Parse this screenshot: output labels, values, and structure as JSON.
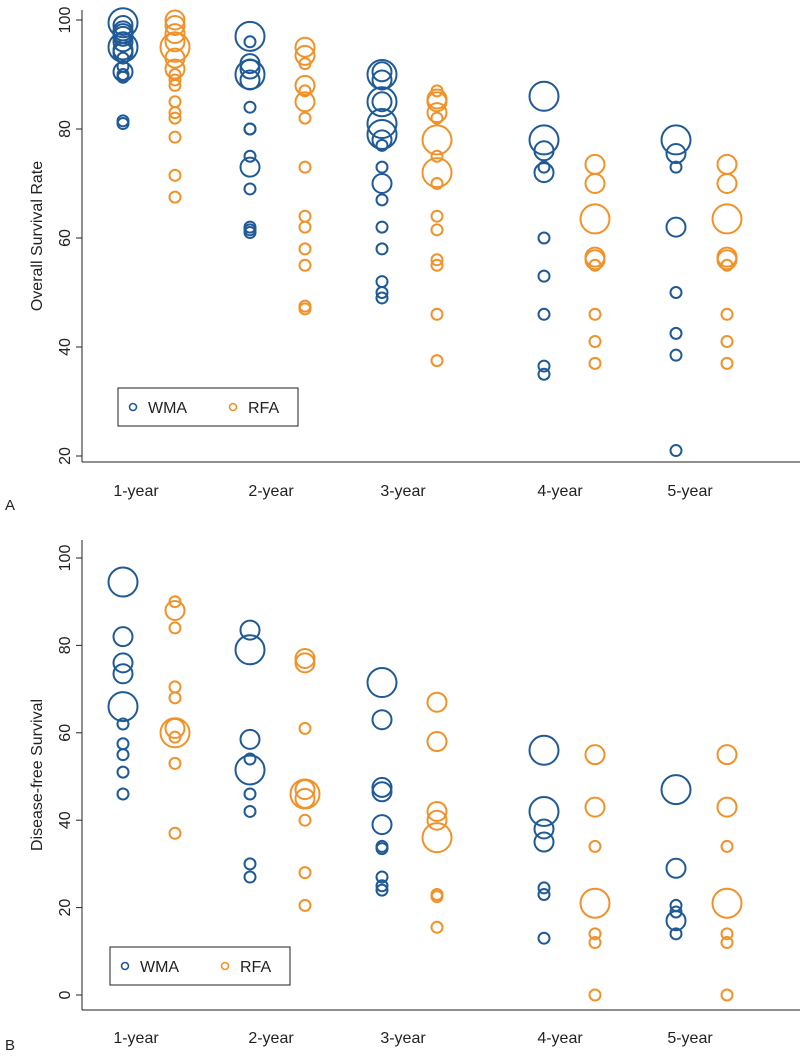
{
  "panels": [
    "A",
    "B"
  ],
  "colors": {
    "wma": "#1f5a96",
    "rfa": "#f0922a",
    "axis": "#222222"
  },
  "chart_data": [
    {
      "type": "scatter",
      "subtype": "bubble",
      "panel_label": "A",
      "title": "",
      "xlabel": "",
      "ylabel": "Overall Survival Rate",
      "categories": [
        "1-year",
        "2-year",
        "3-year",
        "4-year",
        "5-year"
      ],
      "ylim": [
        20,
        100
      ],
      "yticks": [
        20,
        40,
        60,
        80,
        100
      ],
      "legend": {
        "position": "bottom-left",
        "entries": [
          "WMA",
          "RFA"
        ]
      },
      "series": [
        {
          "name": "WMA",
          "color": "#1f5a96",
          "points": {
            "1-year": [
              [
                99.5,
                3
              ],
              [
                99,
                2
              ],
              [
                98,
                2
              ],
              [
                97.5,
                2
              ],
              [
                97,
                2
              ],
              [
                96,
                2
              ],
              [
                95,
                3
              ],
              [
                94.5,
                2
              ],
              [
                94,
                2
              ],
              [
                93,
                1
              ],
              [
                91.5,
                1
              ],
              [
                90.5,
                2
              ],
              [
                90,
                1
              ],
              [
                89.5,
                1
              ],
              [
                81.5,
                1
              ],
              [
                81,
                1
              ]
            ],
            "2-year": [
              [
                97,
                3
              ],
              [
                96,
                1
              ],
              [
                92,
                2
              ],
              [
                91,
                2
              ],
              [
                90,
                3
              ],
              [
                89,
                2
              ],
              [
                84,
                1
              ],
              [
                80,
                1
              ],
              [
                80,
                1
              ],
              [
                75,
                1
              ],
              [
                73,
                2
              ],
              [
                69,
                1
              ],
              [
                62,
                1
              ],
              [
                61.5,
                1
              ],
              [
                61,
                1
              ]
            ],
            "3-year": [
              [
                90.5,
                2
              ],
              [
                90,
                3
              ],
              [
                89,
                2
              ],
              [
                85,
                3
              ],
              [
                85,
                2
              ],
              [
                81,
                3
              ],
              [
                79,
                3
              ],
              [
                78,
                2
              ],
              [
                77,
                1
              ],
              [
                73,
                1
              ],
              [
                70,
                2
              ],
              [
                67,
                1
              ],
              [
                62,
                1
              ],
              [
                58,
                1
              ],
              [
                52,
                1
              ],
              [
                50,
                1
              ],
              [
                49,
                1
              ]
            ],
            "4-year": [
              [
                86,
                3
              ],
              [
                78,
                3
              ],
              [
                76,
                2
              ],
              [
                73,
                1
              ],
              [
                72,
                2
              ],
              [
                60,
                1
              ],
              [
                53,
                1
              ],
              [
                46,
                1
              ],
              [
                36.5,
                1
              ],
              [
                35,
                1
              ]
            ],
            "5-year": [
              [
                78,
                3
              ],
              [
                75.5,
                2
              ],
              [
                73,
                1
              ],
              [
                62,
                2
              ],
              [
                50,
                1
              ],
              [
                42.5,
                1
              ],
              [
                38.5,
                1
              ],
              [
                21,
                1
              ]
            ]
          }
        },
        {
          "name": "RFA",
          "color": "#f0922a",
          "points": {
            "1-year": [
              [
                100,
                2
              ],
              [
                99,
                2
              ],
              [
                97.5,
                2
              ],
              [
                96,
                2
              ],
              [
                95,
                3
              ],
              [
                93,
                2
              ],
              [
                91,
                2
              ],
              [
                90,
                1
              ],
              [
                89,
                1
              ],
              [
                88,
                1
              ],
              [
                85,
                1
              ],
              [
                83,
                1
              ],
              [
                82,
                1
              ],
              [
                78.5,
                1
              ],
              [
                71.5,
                1
              ],
              [
                67.5,
                1
              ]
            ],
            "2-year": [
              [
                95,
                2
              ],
              [
                93.5,
                2
              ],
              [
                92,
                1
              ],
              [
                88,
                2
              ],
              [
                87,
                1
              ],
              [
                85,
                2
              ],
              [
                82,
                1
              ],
              [
                73,
                1
              ],
              [
                64,
                1
              ],
              [
                62,
                1
              ],
              [
                58,
                1
              ],
              [
                55,
                1
              ],
              [
                47.5,
                1
              ],
              [
                47,
                1
              ]
            ],
            "3-year": [
              [
                87,
                1
              ],
              [
                85.5,
                2
              ],
              [
                85,
                2
              ],
              [
                83,
                2
              ],
              [
                82,
                1
              ],
              [
                78,
                3
              ],
              [
                75,
                1
              ],
              [
                72,
                3
              ],
              [
                70,
                1
              ],
              [
                64,
                1
              ],
              [
                61.5,
                1
              ],
              [
                56,
                1
              ],
              [
                55,
                1
              ],
              [
                46,
                1
              ],
              [
                37.5,
                1
              ]
            ],
            "4-year": [
              [
                73.5,
                2
              ],
              [
                70,
                2
              ],
              [
                63.5,
                3
              ],
              [
                56.5,
                2
              ],
              [
                56,
                2
              ],
              [
                55,
                1
              ],
              [
                46,
                1
              ],
              [
                41,
                1
              ],
              [
                37,
                1
              ]
            ],
            "5-year": [
              [
                73.5,
                2
              ],
              [
                70,
                2
              ],
              [
                63.5,
                3
              ],
              [
                56.5,
                2
              ],
              [
                56,
                2
              ],
              [
                55,
                1
              ],
              [
                46,
                1
              ],
              [
                41,
                1
              ],
              [
                37,
                1
              ]
            ]
          }
        }
      ]
    },
    {
      "type": "scatter",
      "subtype": "bubble",
      "panel_label": "B",
      "title": "",
      "xlabel": "",
      "ylabel": "Disease-free Survival",
      "categories": [
        "1-year",
        "2-year",
        "3-year",
        "4-year",
        "5-year"
      ],
      "ylim": [
        0,
        100
      ],
      "yticks": [
        0,
        20,
        40,
        60,
        80,
        100
      ],
      "legend": {
        "position": "bottom-left",
        "entries": [
          "WMA",
          "RFA"
        ]
      },
      "series": [
        {
          "name": "WMA",
          "color": "#1f5a96",
          "points": {
            "1-year": [
              [
                94.5,
                3
              ],
              [
                82,
                2
              ],
              [
                76,
                2
              ],
              [
                73.5,
                2
              ],
              [
                66,
                3
              ],
              [
                62,
                1
              ],
              [
                57.5,
                1
              ],
              [
                55,
                1
              ],
              [
                51,
                1
              ],
              [
                46,
                1
              ]
            ],
            "2-year": [
              [
                83.5,
                2
              ],
              [
                79,
                3
              ],
              [
                58.5,
                2
              ],
              [
                54,
                1
              ],
              [
                51.5,
                3
              ],
              [
                46,
                1
              ],
              [
                42,
                1
              ],
              [
                30,
                1
              ],
              [
                27,
                1
              ]
            ],
            "3-year": [
              [
                71.5,
                3
              ],
              [
                63,
                2
              ],
              [
                47.5,
                2
              ],
              [
                46.5,
                2
              ],
              [
                39,
                2
              ],
              [
                34,
                1
              ],
              [
                33.5,
                1
              ],
              [
                27,
                1
              ],
              [
                25,
                1
              ],
              [
                24,
                1
              ]
            ],
            "4-year": [
              [
                56,
                3
              ],
              [
                42,
                3
              ],
              [
                38,
                2
              ],
              [
                35,
                2
              ],
              [
                24.5,
                1
              ],
              [
                23,
                1
              ],
              [
                13,
                1
              ]
            ],
            "5-year": [
              [
                47,
                3
              ],
              [
                29,
                2
              ],
              [
                20.5,
                1
              ],
              [
                19,
                1
              ],
              [
                17,
                2
              ],
              [
                14,
                1
              ]
            ]
          }
        },
        {
          "name": "RFA",
          "color": "#f0922a",
          "points": {
            "1-year": [
              [
                90,
                1
              ],
              [
                88,
                2
              ],
              [
                84,
                1
              ],
              [
                70.5,
                1
              ],
              [
                68,
                1
              ],
              [
                61,
                2
              ],
              [
                60,
                3
              ],
              [
                59,
                1
              ],
              [
                53,
                1
              ],
              [
                37,
                1
              ]
            ],
            "2-year": [
              [
                77,
                2
              ],
              [
                76,
                2
              ],
              [
                61,
                1
              ],
              [
                47,
                2
              ],
              [
                46,
                3
              ],
              [
                45,
                2
              ],
              [
                40,
                1
              ],
              [
                28,
                1
              ],
              [
                20.5,
                1
              ]
            ],
            "3-year": [
              [
                67,
                2
              ],
              [
                58,
                2
              ],
              [
                42,
                2
              ],
              [
                40,
                2
              ],
              [
                36,
                3
              ],
              [
                23,
                1
              ],
              [
                22.5,
                1
              ],
              [
                15.5,
                1
              ]
            ],
            "4-year": [
              [
                55,
                2
              ],
              [
                43,
                2
              ],
              [
                34,
                1
              ],
              [
                21,
                3
              ],
              [
                14,
                1
              ],
              [
                12,
                1
              ],
              [
                0,
                1
              ]
            ],
            "5-year": [
              [
                55,
                2
              ],
              [
                43,
                2
              ],
              [
                34,
                1
              ],
              [
                21,
                3
              ],
              [
                14,
                1
              ],
              [
                12,
                1
              ],
              [
                0,
                1
              ]
            ]
          }
        }
      ]
    }
  ]
}
